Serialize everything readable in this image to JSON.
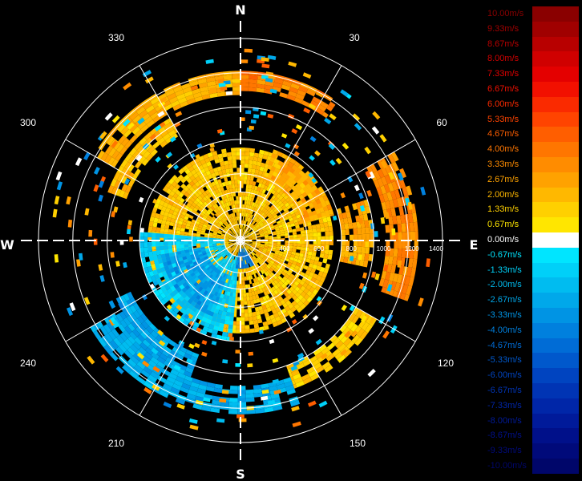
{
  "chart_data": {
    "type": "heatmap",
    "subtype": "polar-radial-velocity-display",
    "cardinals": {
      "north": "N",
      "east": "E",
      "south": "S",
      "west": "W"
    },
    "azimuth_labels": [
      "30",
      "60",
      "120",
      "150",
      "210",
      "240",
      "300",
      "330"
    ],
    "range_labels": [
      "400",
      "600",
      "800",
      "1000",
      "1200",
      "1400"
    ],
    "colorbar": {
      "unit": "m/s",
      "entries": [
        {
          "label": "10.00m/s",
          "value": 10.0,
          "color": "#8a0000"
        },
        {
          "label": "9.33m/s",
          "value": 9.33,
          "color": "#a00000"
        },
        {
          "label": "8.67m/s",
          "value": 8.67,
          "color": "#b80000"
        },
        {
          "label": "8.00m/s",
          "value": 8.0,
          "color": "#d00000"
        },
        {
          "label": "7.33m/s",
          "value": 7.33,
          "color": "#e40000"
        },
        {
          "label": "6.67m/s",
          "value": 6.67,
          "color": "#f21000"
        },
        {
          "label": "6.00m/s",
          "value": 6.0,
          "color": "#fa2a00"
        },
        {
          "label": "5.33m/s",
          "value": 5.33,
          "color": "#ff4400"
        },
        {
          "label": "4.67m/s",
          "value": 4.67,
          "color": "#ff5e00"
        },
        {
          "label": "4.00m/s",
          "value": 4.0,
          "color": "#ff7600"
        },
        {
          "label": "3.33m/s",
          "value": 3.33,
          "color": "#ff8c00"
        },
        {
          "label": "2.67m/s",
          "value": 2.67,
          "color": "#ffa200"
        },
        {
          "label": "2.00m/s",
          "value": 2.0,
          "color": "#ffb800"
        },
        {
          "label": "1.33m/s",
          "value": 1.33,
          "color": "#ffd000"
        },
        {
          "label": "0.67m/s",
          "value": 0.67,
          "color": "#ffe600"
        },
        {
          "label": "0.00m/s",
          "value": 0.0,
          "color": "#ffffff"
        },
        {
          "label": "-0.67m/s",
          "value": -0.67,
          "color": "#00e5ff"
        },
        {
          "label": "-1.33m/s",
          "value": -1.33,
          "color": "#00d0f8"
        },
        {
          "label": "-2.00m/s",
          "value": -2.0,
          "color": "#00bcf0"
        },
        {
          "label": "-2.67m/s",
          "value": -2.67,
          "color": "#00a8ea"
        },
        {
          "label": "-3.33m/s",
          "value": -3.33,
          "color": "#0094e4"
        },
        {
          "label": "-4.00m/s",
          "value": -4.0,
          "color": "#0080de"
        },
        {
          "label": "-4.67m/s",
          "value": -4.67,
          "color": "#006cd6"
        },
        {
          "label": "-5.33m/s",
          "value": -5.33,
          "color": "#0058cc"
        },
        {
          "label": "-6.00m/s",
          "value": -6.0,
          "color": "#0044c0"
        },
        {
          "label": "-6.67m/s",
          "value": -6.67,
          "color": "#0034b4"
        },
        {
          "label": "-7.33m/s",
          "value": -7.33,
          "color": "#0026a8"
        },
        {
          "label": "-8.00m/s",
          "value": -8.0,
          "color": "#001a9a"
        },
        {
          "label": "-8.67m/s",
          "value": -8.67,
          "color": "#00108a"
        },
        {
          "label": "-9.33m/s",
          "value": -9.33,
          "color": "#000a7a"
        },
        {
          "label": "-10.00m/s",
          "value": -10.0,
          "color": "#00066a"
        }
      ]
    },
    "sectors": [
      {
        "az_from": 300,
        "az_to": 360,
        "r_from": 0.72,
        "r_to": 0.84,
        "velocity": 2.2
      },
      {
        "az_from": 0,
        "az_to": 35,
        "r_from": 0.74,
        "r_to": 0.84,
        "velocity": 3.6
      },
      {
        "az_from": 290,
        "az_to": 330,
        "r_from": 0.6,
        "r_to": 0.7,
        "velocity": 1.8
      },
      {
        "az_from": 60,
        "az_to": 110,
        "r_from": 0.72,
        "r_to": 0.88,
        "velocity": 3.4
      },
      {
        "az_from": 72,
        "az_to": 102,
        "r_from": 0.5,
        "r_to": 0.66,
        "velocity": 2.6
      },
      {
        "az_from": 120,
        "az_to": 160,
        "r_from": 0.66,
        "r_to": 0.78,
        "velocity": 1.4
      },
      {
        "az_from": 160,
        "az_to": 240,
        "r_from": 0.72,
        "r_to": 0.86,
        "velocity": -2.4
      },
      {
        "az_from": 200,
        "az_to": 245,
        "r_from": 0.6,
        "r_to": 0.72,
        "velocity": -2.8
      },
      {
        "az_from": 0,
        "az_to": 360,
        "r_from": 0.0,
        "r_to": 0.46,
        "velocity": 1.6
      },
      {
        "az_from": 185,
        "az_to": 275,
        "r_from": 0.08,
        "r_to": 0.5,
        "velocity": -1.5
      },
      {
        "az_from": 200,
        "az_to": 260,
        "r_from": 0.18,
        "r_to": 0.4,
        "velocity": -3.0
      },
      {
        "az_from": 20,
        "az_to": 75,
        "r_from": 0.32,
        "r_to": 0.48,
        "velocity": 2.4
      },
      {
        "az_from": 150,
        "az_to": 190,
        "r_from": 0.04,
        "r_to": 0.14,
        "velocity": -4.2
      }
    ]
  }
}
